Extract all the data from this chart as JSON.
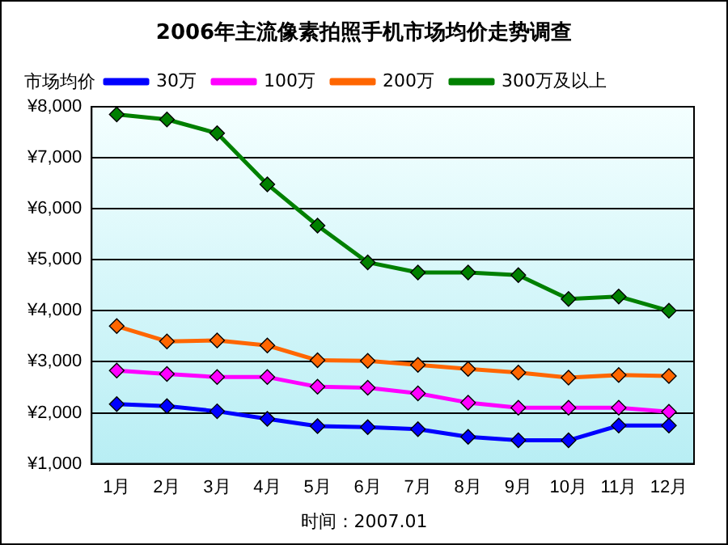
{
  "chart_data": {
    "type": "line",
    "title": "2006年主流像素拍照手机市场均价走势调查",
    "ylabel": "市场均价",
    "categories": [
      "1月",
      "2月",
      "3月",
      "4月",
      "5月",
      "6月",
      "7月",
      "8月",
      "9月",
      "10月",
      "11月",
      "12月"
    ],
    "series": [
      {
        "name": "30万",
        "color": "#0000ff",
        "values": [
          2170,
          2130,
          2030,
          1880,
          1740,
          1720,
          1680,
          1530,
          1460,
          1460,
          1750,
          1750
        ]
      },
      {
        "name": "100万",
        "color": "#ff00ff",
        "values": [
          2830,
          2760,
          2700,
          2700,
          2510,
          2490,
          2380,
          2200,
          2100,
          2100,
          2100,
          2020
        ]
      },
      {
        "name": "200万",
        "color": "#ff6600",
        "values": [
          3700,
          3400,
          3420,
          3320,
          3030,
          3020,
          2940,
          2860,
          2790,
          2690,
          2740,
          2720
        ]
      },
      {
        "name": "300万及以上",
        "color": "#008000",
        "values": [
          7850,
          7750,
          7480,
          6480,
          5670,
          4950,
          4750,
          4750,
          4700,
          4230,
          4280,
          4000
        ]
      }
    ],
    "ylim": [
      1000,
      8000
    ],
    "yticks": [
      {
        "value": 1000,
        "label": "¥1,000"
      },
      {
        "value": 2000,
        "label": "¥2,000"
      },
      {
        "value": 3000,
        "label": "¥3,000"
      },
      {
        "value": 4000,
        "label": "¥4,000"
      },
      {
        "value": 5000,
        "label": "¥5,000"
      },
      {
        "value": 6000,
        "label": "¥6,000"
      },
      {
        "value": 7000,
        "label": "¥7,000"
      },
      {
        "value": 8000,
        "label": "¥8,000"
      }
    ],
    "grid": "y",
    "legend": "top",
    "marker": "diamond",
    "line_style": "solid",
    "annotations": [
      "时间：2007.01"
    ]
  }
}
